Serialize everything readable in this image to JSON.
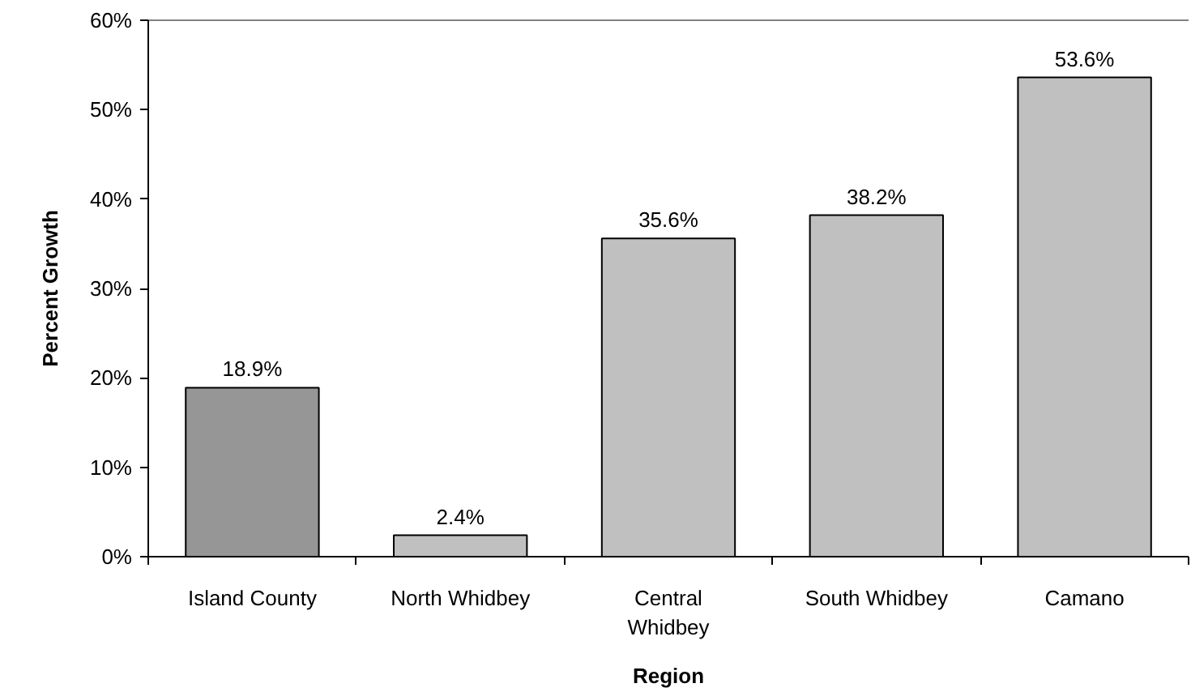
{
  "chart_data": {
    "type": "bar",
    "xlabel": "Region",
    "ylabel": "Percent Growth",
    "categories": [
      "Island County",
      "North Whidbey",
      "Central Whidbey",
      "South Whidbey",
      "Camano"
    ],
    "values": [
      18.9,
      2.4,
      35.6,
      38.2,
      53.6
    ],
    "colors": [
      "#969696",
      "#c0c0c0",
      "#c0c0c0",
      "#c0c0c0",
      "#c0c0c0"
    ],
    "value_labels": [
      "18.9%",
      "2.4%",
      "35.6%",
      "38.2%",
      "53.6%"
    ],
    "ylim": [
      0,
      60
    ],
    "yticks": [
      {
        "value": 0,
        "label": "0%"
      },
      {
        "value": 10,
        "label": "10%"
      },
      {
        "value": 20,
        "label": "20%"
      },
      {
        "value": 30,
        "label": "30%"
      },
      {
        "value": 40,
        "label": "40%"
      },
      {
        "value": 50,
        "label": "50%"
      },
      {
        "value": 60,
        "label": "60%"
      }
    ],
    "grid": false
  }
}
